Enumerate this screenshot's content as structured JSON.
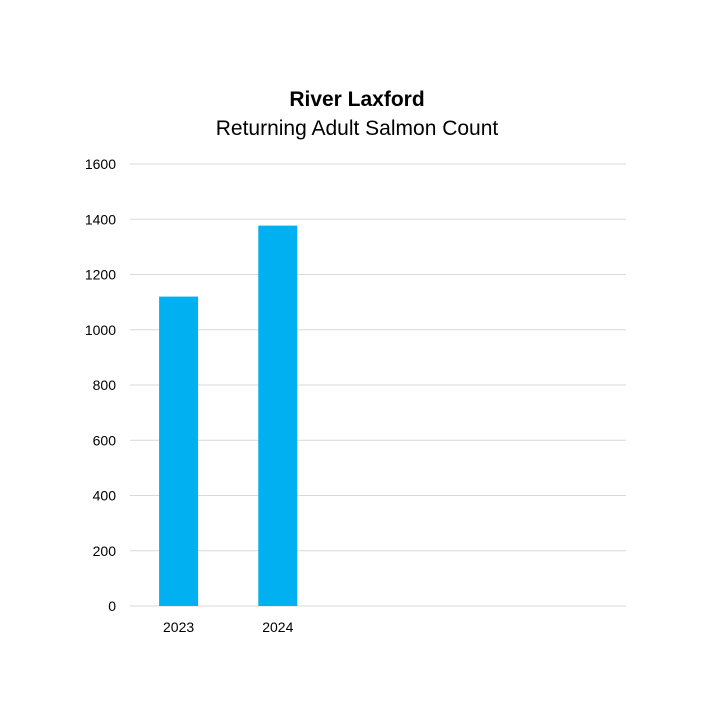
{
  "chart_data": {
    "type": "bar",
    "title": "River Laxford",
    "subtitle": "Returning Adult Salmon Count",
    "categories": [
      "2023",
      "2024",
      "",
      "",
      ""
    ],
    "values": [
      1120,
      1377,
      null,
      null,
      null
    ],
    "xlabel": "",
    "ylabel": "",
    "ylim": [
      0,
      1600
    ],
    "yticks": [
      "0",
      "200",
      "400",
      "600",
      "800",
      "1000",
      "1200",
      "1400",
      "1600"
    ],
    "grid": true,
    "legend": "none",
    "bar_color": "#00B0F0",
    "grid_color": "#D9D9D9"
  }
}
